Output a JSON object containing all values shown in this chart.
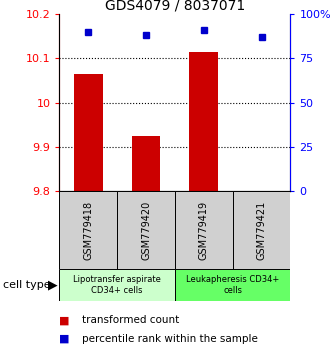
{
  "title": "GDS4079 / 8037071",
  "samples": [
    "GSM779418",
    "GSM779420",
    "GSM779419",
    "GSM779421"
  ],
  "transformed_counts": [
    10.065,
    9.925,
    10.115,
    9.8
  ],
  "percentile_ranks": [
    90,
    88,
    91,
    87
  ],
  "ylim_left": [
    9.8,
    10.2
  ],
  "ylim_right": [
    0,
    100
  ],
  "yticks_left": [
    9.8,
    9.9,
    10.0,
    10.1,
    10.2
  ],
  "ytick_labels_left": [
    "9.8",
    "9.9",
    "10",
    "10.1",
    "10.2"
  ],
  "yticks_right": [
    0,
    25,
    50,
    75,
    100
  ],
  "ytick_labels_right": [
    "0",
    "25",
    "50",
    "75",
    "100%"
  ],
  "bar_color": "#cc0000",
  "dot_color": "#0000cc",
  "cell_type_groups": [
    {
      "label": "Lipotransfer aspirate\nCD34+ cells",
      "color": "#ccffcc",
      "start": 0,
      "end": 2
    },
    {
      "label": "Leukapheresis CD34+\ncells",
      "color": "#66ff66",
      "start": 2,
      "end": 4
    }
  ],
  "cell_type_label": "cell type",
  "legend_items": [
    {
      "color": "#cc0000",
      "label": "transformed count"
    },
    {
      "color": "#0000cc",
      "label": "percentile rank within the sample"
    }
  ],
  "grid_color": "#000000",
  "bar_baseline": 9.8,
  "bar_width": 0.5,
  "dot_size": 5,
  "sample_box_color": "#d0d0d0",
  "title_fontsize": 10,
  "axis_label_fontsize": 8,
  "sample_fontsize": 7,
  "cell_type_fontsize": 6,
  "legend_fontsize": 7.5
}
